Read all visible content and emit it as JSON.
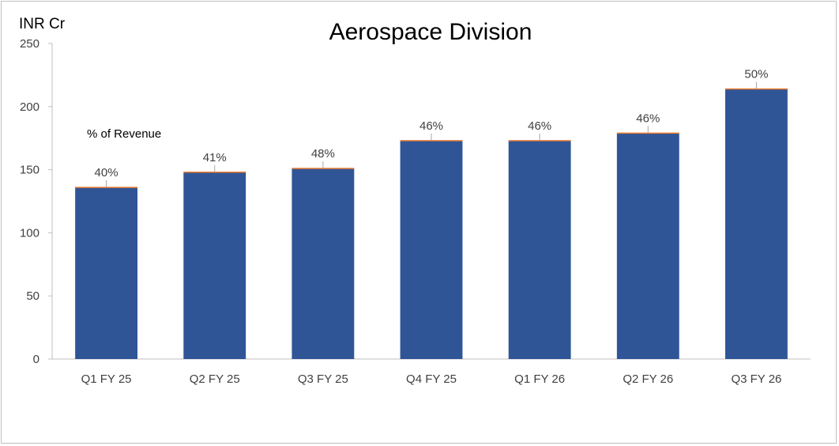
{
  "chart_data": {
    "type": "bar",
    "title": "Aerospace Division",
    "unit_label": "INR Cr",
    "annotation": "% of Revenue",
    "categories": [
      "Q1 FY 25",
      "Q2 FY 25",
      "Q3 FY 25",
      "Q4 FY 25",
      "Q1 FY 26",
      "Q2 FY 26",
      "Q3 FY 26"
    ],
    "values": [
      136,
      148,
      151,
      173,
      173,
      179,
      214
    ],
    "data_labels": [
      "40%",
      "41%",
      "48%",
      "46%",
      "46%",
      "46%",
      "50%"
    ],
    "yticks": [
      "0",
      "50",
      "100",
      "150",
      "200",
      "250"
    ],
    "ylim": [
      0,
      250
    ],
    "grid": false,
    "colors": {
      "bar": "#2f5597",
      "bar_top": "#ed7d31",
      "leader": "#a6a6a6",
      "axis": "#bfbfbf"
    }
  }
}
